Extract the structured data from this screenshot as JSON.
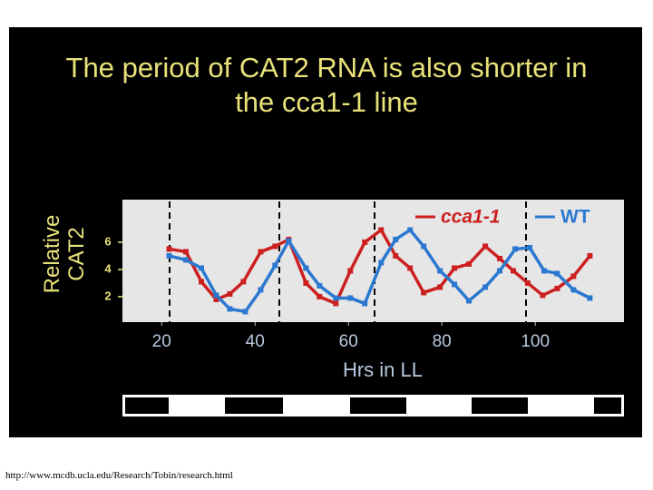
{
  "chart_data": {
    "type": "line",
    "title": "The period of CAT2 RNA is also shorter in the cca1-1 line",
    "xlabel": "Hrs in LL",
    "ylabel": "Relative CAT2",
    "xlim": [
      11.6,
      119
    ],
    "xticks": [
      20,
      40,
      60,
      80,
      100
    ],
    "ylim": [
      0.13,
      9.13
    ],
    "yticks": [
      2,
      4,
      6
    ],
    "grid": false,
    "legend": "top-right",
    "series": [
      {
        "name": "cca1-1",
        "color": "#cc2020",
        "x": [
          21.6,
          25.2,
          28.5,
          31.7,
          34.6,
          37.5,
          41.2,
          44.3,
          47.2,
          50.9,
          53.8,
          57.3,
          60.4,
          63.5,
          67.0,
          70.1,
          73.2,
          76.1,
          79.6,
          82.7,
          85.8,
          89.3,
          92.4,
          95.3,
          98.4,
          101.6,
          104.7,
          108.2,
          111.7
        ],
        "values": [
          5.5,
          5.3,
          3.1,
          1.8,
          2.2,
          3.1,
          5.3,
          5.7,
          6.2,
          3.0,
          2.0,
          1.5,
          3.9,
          6.0,
          6.9,
          5.0,
          4.1,
          2.3,
          2.7,
          4.1,
          4.4,
          5.7,
          4.8,
          3.9,
          3.0,
          2.1,
          2.6,
          3.5,
          5.0
        ]
      },
      {
        "name": "WT",
        "color": "#2a78d0",
        "x": [
          21.6,
          25.2,
          28.5,
          31.7,
          34.6,
          37.9,
          41.2,
          44.3,
          47.2,
          50.9,
          53.8,
          57.3,
          60.4,
          63.5,
          67.0,
          70.1,
          73.2,
          76.1,
          79.6,
          82.7,
          85.8,
          89.3,
          92.4,
          95.7,
          98.8,
          101.9,
          104.7,
          108.2,
          111.7
        ],
        "values": [
          5.0,
          4.7,
          4.1,
          2.1,
          1.1,
          0.9,
          2.5,
          4.3,
          6.1,
          4.1,
          2.8,
          1.9,
          1.9,
          1.5,
          4.5,
          6.2,
          6.9,
          5.7,
          3.9,
          2.9,
          1.7,
          2.7,
          3.9,
          5.5,
          5.6,
          3.9,
          3.7,
          2.5,
          1.9
        ]
      }
    ]
  },
  "source": "http://www.mcdb.ucla.edu/Research/Tobin/research.html"
}
